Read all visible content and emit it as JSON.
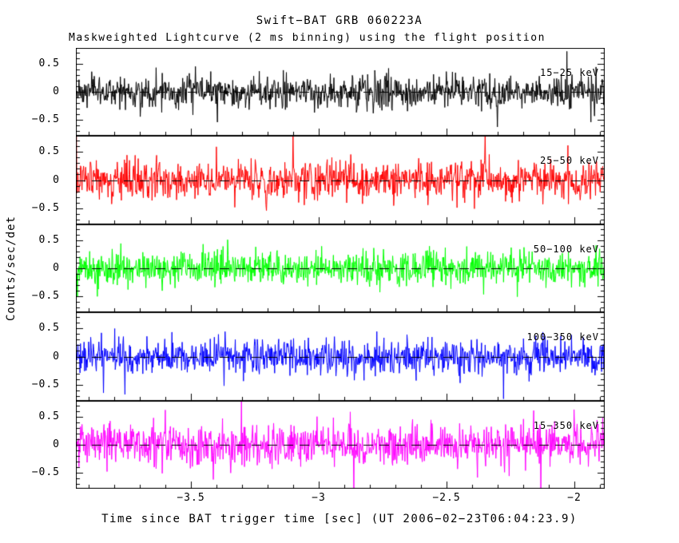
{
  "chart_data": {
    "type": "line",
    "title": "Swift−BAT GRB 060223A",
    "subtitle": "Maskweighted Lightcurve (2 ms binning) using the flight position",
    "xlabel": "Time since BAT trigger time [sec] (UT 2006−02−23T06:04:23.9)",
    "ylabel": "Counts/sec/det",
    "xlim": [
      -3.95,
      -1.88
    ],
    "panel_ylim": [
      -0.78,
      0.78
    ],
    "x_major_ticks": [
      -3.5,
      -3.0,
      -2.5,
      -2.0
    ],
    "x_tick_labels": [
      "−3.5",
      "−3",
      "−2.5",
      "−2"
    ],
    "x_minor_step": 0.1,
    "y_major_ticks": [
      0.5,
      0.0,
      -0.5
    ],
    "y_tick_labels": [
      "0.5",
      "0",
      "−0.5"
    ],
    "y_minor_step": 0.1,
    "bin_width_sec": 0.002,
    "grid": false,
    "legend_position": "in-panel top-right",
    "zero_line_style": "dashed",
    "axis_color": "#000000",
    "background_color": "#ffffff",
    "series": [
      {
        "name": "15−25 keV",
        "color": "#000000",
        "mean": 0.0,
        "noise_sigma": 0.14,
        "spike_prob": 0.02,
        "spike_scale": 2.2,
        "seed": 7
      },
      {
        "name": "25−50 keV",
        "color": "#ff0000",
        "mean": 0.0,
        "noise_sigma": 0.17,
        "spike_prob": 0.025,
        "spike_scale": 2.2,
        "seed": 13
      },
      {
        "name": "50−100 keV",
        "color": "#00ff00",
        "mean": 0.0,
        "noise_sigma": 0.15,
        "spike_prob": 0.02,
        "spike_scale": 2.2,
        "seed": 29
      },
      {
        "name": "100−350 keV",
        "color": "#0000ff",
        "mean": 0.0,
        "noise_sigma": 0.15,
        "spike_prob": 0.02,
        "spike_scale": 2.2,
        "seed": 41
      },
      {
        "name": "15−350 keV",
        "color": "#ff00ff",
        "mean": 0.0,
        "noise_sigma": 0.18,
        "spike_prob": 0.03,
        "spike_scale": 2.1,
        "seed": 53
      }
    ],
    "description": "Mask-weighted, background-subtracted count-rate noise fluctuating about zero in five energy bands; no burst emission visible in this pre-trigger time window."
  }
}
